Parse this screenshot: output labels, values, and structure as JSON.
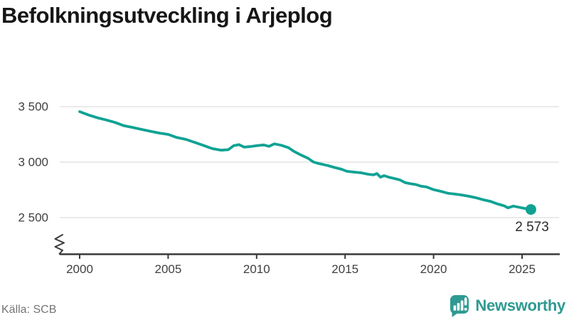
{
  "title": "Befolkningsutveckling i Arjeplog",
  "source": "Källa: SCB",
  "branding": {
    "name": "Newsworthy",
    "logo_icon": "bar-chart-speech-bubble-icon"
  },
  "colors": {
    "line": "#0fa294",
    "brand": "#2f9a92",
    "grid": "#e3e3e3",
    "axis": "#3a3a3a",
    "tick_text": "#3f3f3f",
    "title_text": "#161616",
    "source_text": "#757575",
    "annotation_text": "#2b2b2b"
  },
  "chart_data": {
    "type": "line",
    "title": "Befolkningsutveckling i Arjeplog",
    "series_name": "Befolkning i Arjeplog",
    "xlabel": "",
    "ylabel": "",
    "grid": "horizontal",
    "legend": "none",
    "axis_break": true,
    "xlim": [
      1998.9,
      2027.1
    ],
    "ylim": [
      2400,
      3550
    ],
    "x": [
      2000.0,
      2000.5,
      2001.0,
      2001.5,
      2002.0,
      2002.5,
      2003.0,
      2003.5,
      2004.0,
      2004.5,
      2005.0,
      2005.5,
      2006.0,
      2006.5,
      2007.0,
      2007.5,
      2008.0,
      2008.4,
      2008.7,
      2009.0,
      2009.3,
      2009.6,
      2010.0,
      2010.4,
      2010.7,
      2011.0,
      2011.4,
      2011.8,
      2012.1,
      2012.5,
      2012.9,
      2013.2,
      2013.5,
      2014.0,
      2014.4,
      2014.8,
      2015.1,
      2015.5,
      2015.9,
      2016.3,
      2016.6,
      2016.8,
      2017.0,
      2017.2,
      2017.5,
      2017.8,
      2018.1,
      2018.4,
      2018.7,
      2019.0,
      2019.3,
      2019.6,
      2020.0,
      2020.4,
      2020.8,
      2021.2,
      2021.6,
      2022.0,
      2022.4,
      2022.8,
      2023.2,
      2023.6,
      2024.0,
      2024.2,
      2024.5,
      2024.8,
      2025.0,
      2025.5
    ],
    "values": [
      3455,
      3425,
      3400,
      3380,
      3358,
      3328,
      3312,
      3295,
      3278,
      3262,
      3250,
      3222,
      3205,
      3178,
      3150,
      3122,
      3108,
      3112,
      3148,
      3158,
      3135,
      3140,
      3148,
      3155,
      3142,
      3165,
      3152,
      3130,
      3098,
      3065,
      3035,
      3002,
      2988,
      2970,
      2952,
      2936,
      2917,
      2910,
      2904,
      2891,
      2885,
      2897,
      2865,
      2878,
      2863,
      2852,
      2840,
      2815,
      2805,
      2798,
      2783,
      2776,
      2752,
      2737,
      2720,
      2712,
      2704,
      2692,
      2679,
      2661,
      2647,
      2624,
      2606,
      2588,
      2604,
      2594,
      2587,
      2573
    ],
    "end_value": 2573,
    "end_label": "2 573",
    "yticks": [
      {
        "value": 3500,
        "label": "3 500"
      },
      {
        "value": 3000,
        "label": "3 000"
      },
      {
        "value": 2500,
        "label": "2 500"
      }
    ],
    "xticks": [
      {
        "value": 2000,
        "label": "2000"
      },
      {
        "value": 2005,
        "label": "2005"
      },
      {
        "value": 2010,
        "label": "2010"
      },
      {
        "value": 2015,
        "label": "2015"
      },
      {
        "value": 2020,
        "label": "2020"
      },
      {
        "value": 2025,
        "label": "2025"
      }
    ]
  }
}
